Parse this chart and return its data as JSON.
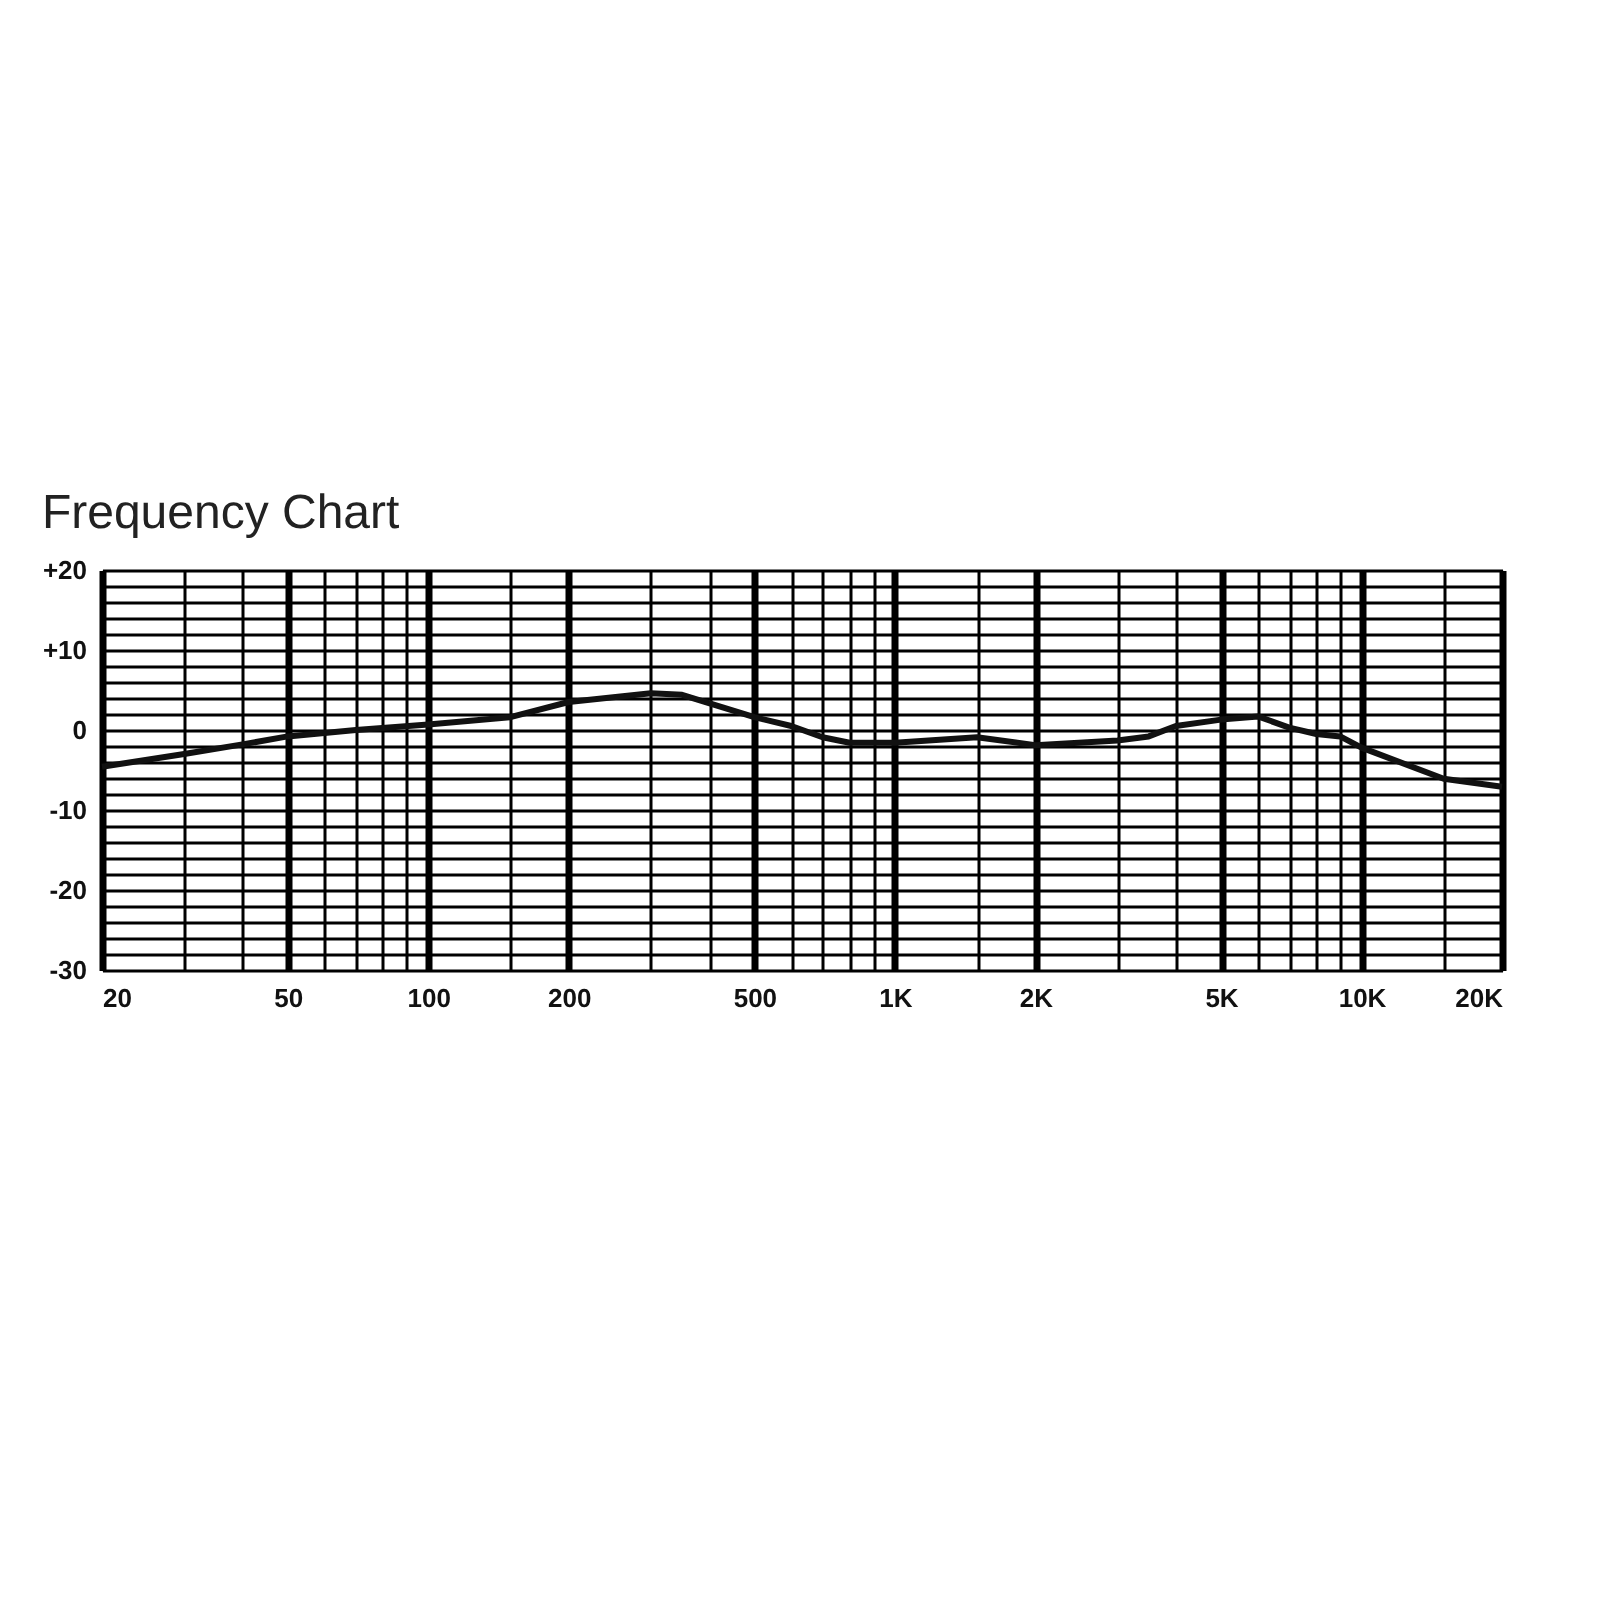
{
  "chart_data": {
    "type": "line",
    "title": "Frequency Chart",
    "x": [
      20,
      30,
      40,
      50,
      70,
      100,
      150,
      200,
      300,
      350,
      500,
      600,
      700,
      800,
      1000,
      1500,
      2000,
      3000,
      3500,
      4000,
      5000,
      6000,
      7000,
      8000,
      9000,
      10000,
      15000,
      20000
    ],
    "series": [
      {
        "color": "#111111",
        "values": [
          -4.6,
          -3.0,
          -1.8,
          -0.8,
          0,
          0.7,
          1.6,
          3.5,
          4.6,
          4.4,
          1.6,
          0.5,
          -0.9,
          -1.6,
          -1.6,
          -0.9,
          -1.9,
          -1.3,
          -0.8,
          0.5,
          1.3,
          1.7,
          0.3,
          -0.5,
          -0.8,
          -2.2,
          -6.1,
          -7.1
        ]
      }
    ],
    "log": "x",
    "xlim": [
      20,
      20000
    ],
    "xticks": [
      20,
      {
        "value": 30,
        "label": null
      },
      {
        "value": 40,
        "label": null
      },
      50,
      {
        "value": 60,
        "label": null
      },
      {
        "value": 70,
        "label": null
      },
      {
        "value": 80,
        "label": null
      },
      {
        "value": 90,
        "label": null
      },
      100,
      {
        "value": 150,
        "label": null
      },
      200,
      {
        "value": 300,
        "label": null
      },
      {
        "value": 400,
        "label": null
      },
      500,
      {
        "value": 600,
        "label": null
      },
      {
        "value": 700,
        "label": null
      },
      {
        "value": 800,
        "label": null
      },
      {
        "value": 900,
        "label": null
      },
      {
        "value": 1000,
        "label": "1K"
      },
      {
        "value": 1500,
        "label": null
      },
      {
        "value": 2000,
        "label": "2K"
      },
      {
        "value": 3000,
        "label": null
      },
      {
        "value": 4000,
        "label": null
      },
      {
        "value": 5000,
        "label": "5K"
      },
      {
        "value": 6000,
        "label": null
      },
      {
        "value": 7000,
        "label": null
      },
      {
        "value": 8000,
        "label": null
      },
      {
        "value": 9000,
        "label": null
      },
      {
        "value": 10000,
        "label": "10K"
      },
      {
        "value": 15000,
        "label": null
      },
      {
        "value": 20000,
        "label": "20K"
      }
    ],
    "ylim": [
      -30,
      20
    ],
    "yticks": [
      -30,
      {
        "value": -28,
        "label": null
      },
      {
        "value": -26,
        "label": null
      },
      {
        "value": -24,
        "label": null
      },
      {
        "value": -22,
        "label": null
      },
      -20,
      {
        "value": -18,
        "label": null
      },
      {
        "value": -16,
        "label": null
      },
      {
        "value": -14,
        "label": null
      },
      {
        "value": -12,
        "label": null
      },
      -10,
      {
        "value": -8,
        "label": null
      },
      {
        "value": -6,
        "label": null
      },
      {
        "value": -4,
        "label": null
      },
      {
        "value": -2,
        "label": null
      },
      0,
      {
        "value": 2,
        "label": null
      },
      {
        "value": 4,
        "label": null
      },
      {
        "value": 6,
        "label": null
      },
      {
        "value": 8,
        "label": null
      },
      {
        "value": 10,
        "label": "+10"
      },
      {
        "value": 12,
        "label": null
      },
      {
        "value": 14,
        "label": null
      },
      {
        "value": 16,
        "label": null
      },
      {
        "value": 18,
        "label": null
      },
      {
        "value": 20,
        "label": "+20"
      }
    ],
    "grid": true,
    "marker": "none",
    "line_style": "solid"
  }
}
